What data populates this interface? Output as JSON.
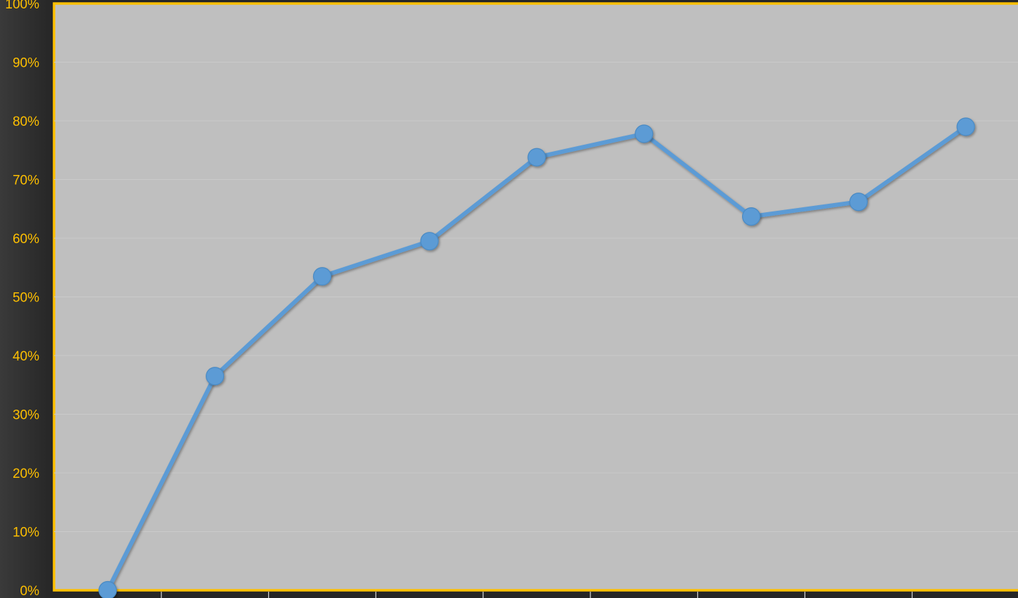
{
  "chart_data": {
    "type": "line",
    "x": [
      1,
      2,
      3,
      4,
      5,
      6,
      7,
      8,
      9
    ],
    "series": [
      {
        "values": [
          0.0,
          36.5,
          53.5,
          59.5,
          73.8,
          77.8,
          63.7,
          66.2,
          79.0
        ]
      }
    ],
    "ylim": [
      0,
      100
    ],
    "y_ticks": [
      "0%",
      "10%",
      "20%",
      "30%",
      "40%",
      "50%",
      "60%",
      "70%",
      "80%",
      "90%",
      "100%"
    ],
    "grid": true,
    "legend": "none"
  },
  "colors": {
    "plot_background": "#bfbfbf",
    "plot_border": "#ffc000",
    "axis_text": "#ffc000",
    "line": "#5b9bd5",
    "marker": "#5b9bd5",
    "gridline": "#cacaca"
  }
}
